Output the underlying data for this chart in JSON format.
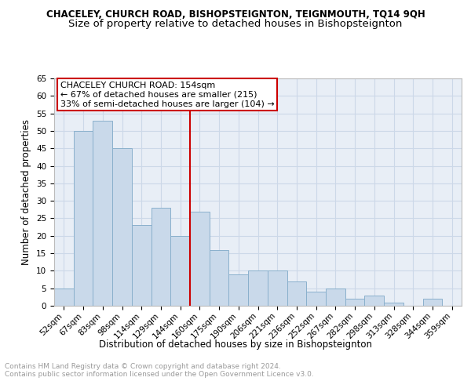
{
  "title": "CHACELEY, CHURCH ROAD, BISHOPSTEIGNTON, TEIGNMOUTH, TQ14 9QH",
  "subtitle": "Size of property relative to detached houses in Bishopsteignton",
  "xlabel": "Distribution of detached houses by size in Bishopsteignton",
  "ylabel": "Number of detached properties",
  "categories": [
    "52sqm",
    "67sqm",
    "83sqm",
    "98sqm",
    "114sqm",
    "129sqm",
    "144sqm",
    "160sqm",
    "175sqm",
    "190sqm",
    "206sqm",
    "221sqm",
    "236sqm",
    "252sqm",
    "267sqm",
    "282sqm",
    "298sqm",
    "313sqm",
    "328sqm",
    "344sqm",
    "359sqm"
  ],
  "values": [
    5,
    50,
    53,
    45,
    23,
    28,
    20,
    27,
    16,
    9,
    10,
    10,
    7,
    4,
    5,
    2,
    3,
    1,
    0,
    2,
    0
  ],
  "bar_color": "#c9d9ea",
  "bar_edge_color": "#8ab0cc",
  "annotation_line1": "CHACELEY CHURCH ROAD: 154sqm",
  "annotation_line2": "← 67% of detached houses are smaller (215)",
  "annotation_line3": "33% of semi-detached houses are larger (104) →",
  "vline_color": "#cc0000",
  "annotation_box_edge_color": "#cc0000",
  "ylim": [
    0,
    65
  ],
  "yticks": [
    0,
    5,
    10,
    15,
    20,
    25,
    30,
    35,
    40,
    45,
    50,
    55,
    60,
    65
  ],
  "grid_color": "#ccd8e8",
  "background_color": "#e8eef6",
  "footer_text": "Contains HM Land Registry data © Crown copyright and database right 2024.\nContains public sector information licensed under the Open Government Licence v3.0.",
  "title_fontsize": 8.5,
  "subtitle_fontsize": 9.5,
  "tick_fontsize": 7.5,
  "ylabel_fontsize": 8.5,
  "xlabel_fontsize": 8.5,
  "annotation_fontsize": 8,
  "footer_fontsize": 6.5
}
